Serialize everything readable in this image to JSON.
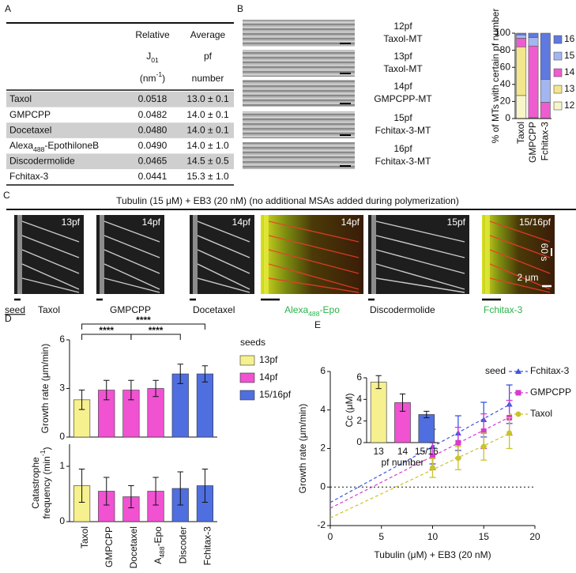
{
  "panel_labels": [
    "A",
    "B",
    "C",
    "D",
    "E"
  ],
  "table": {
    "header": {
      "col1": [
        "Relative",
        [
          "J",
          "01"
        ],
        [
          "(nm",
          "-1",
          ")"
        ]
      ],
      "col2": [
        "Average",
        "pf",
        "number"
      ]
    },
    "rows": [
      [
        "Taxol",
        "0.0518",
        "13.0 ± 0.1"
      ],
      [
        "GMPCPP",
        "0.0482",
        "14.0 ± 0.1"
      ],
      [
        "Docetaxel",
        "0.0480",
        "14.0 ± 0.1"
      ],
      [
        [
          "Alexa",
          "488",
          "-EpothiloneB"
        ],
        "0.0490",
        "14.0 ± 1.0"
      ],
      [
        "Discodermolide",
        "0.0465",
        "14.5 ± 0.5"
      ],
      [
        "Fchitax-3",
        "0.0441",
        "15.3 ± 1.0"
      ]
    ]
  },
  "mt_images": [
    [
      "12pf",
      "Taxol-MT"
    ],
    [
      "13pf",
      "Taxol-MT"
    ],
    [
      "14pf",
      "GMPCPP-MT"
    ],
    [
      "15pf",
      "Fchitax-3-MT"
    ],
    [
      "16pf",
      "Fchitax-3-MT"
    ]
  ],
  "kymographs": {
    "title": "Tubulin (15 μM) + EB3 (20 nM) (no additional MSAs added during polymerization)",
    "seed_label": "seed",
    "time_scale": "60 s",
    "length_scale": "2 μm",
    "panels": [
      {
        "pf": "13pf",
        "name": "Taxol"
      },
      {
        "pf": "14pf",
        "name": "GMPCPP"
      },
      {
        "pf": "14pf",
        "name": "Docetaxel"
      },
      {
        "pf": "14pf",
        "name": [
          "Alexa",
          "488",
          "-Epo"
        ]
      },
      {
        "pf": "15pf",
        "name": "Discodermolide"
      },
      {
        "pf": "15/16pf",
        "name": "Fchitax-3"
      }
    ]
  },
  "chart_data": [
    {
      "type": "stacked_bar",
      "ylabel": "% of MTs with certain pf number",
      "categories": [
        "Taxol",
        "GMPCPP",
        "Fchitax-3"
      ],
      "ylim": [
        0,
        100
      ],
      "yticks": [
        0,
        20,
        40,
        60,
        80,
        100
      ],
      "series": [
        {
          "name": "12",
          "color": "#f8f6c8",
          "values": [
            27,
            0,
            0
          ]
        },
        {
          "name": "13",
          "color": "#f3e68c",
          "values": [
            57,
            1,
            0
          ]
        },
        {
          "name": "14",
          "color": "#ee5ccf",
          "values": [
            10,
            84,
            19
          ]
        },
        {
          "name": "15",
          "color": "#a3b6f0",
          "values": [
            4,
            10,
            27
          ]
        },
        {
          "name": "16",
          "color": "#5f79e0",
          "values": [
            2,
            5,
            54
          ]
        }
      ]
    },
    {
      "type": "bar_error",
      "ylabel": "Growth rate (μm/min)",
      "values": [
        2.3,
        2.9,
        2.9,
        3.0,
        3.9,
        3.9
      ],
      "errors": [
        0.6,
        0.6,
        0.6,
        0.5,
        0.6,
        0.5
      ],
      "colors": [
        "#f7f08e",
        "#f052d2",
        "#f052d2",
        "#f052d2",
        "#4f6fe0",
        "#4f6fe0"
      ],
      "ylim": [
        0,
        6
      ],
      "yticks": [
        0,
        3,
        6
      ],
      "significance": [
        {
          "label": "****",
          "from": 0,
          "to": 5
        },
        {
          "label": "****",
          "from": 0,
          "to": 2
        },
        {
          "label": "****",
          "from": 2,
          "to": 4
        }
      ],
      "legend": {
        "title": "seeds",
        "entries": [
          {
            "name": "13pf",
            "color": "#f7f08e"
          },
          {
            "name": "14pf",
            "color": "#f052d2"
          },
          {
            "name": "15/16pf",
            "color": "#4f6fe0"
          }
        ]
      }
    },
    {
      "type": "bar_error",
      "ylabel": [
        "Catastrophe",
        [
          "frequency (min",
          "-1",
          ")"
        ]
      ],
      "categories": [
        "Taxol",
        "GMPCPP",
        "Docetaxel",
        [
          "A",
          "488",
          "-Epo"
        ],
        "Discoder",
        "Fchitax-3"
      ],
      "values": [
        0.65,
        0.55,
        0.45,
        0.55,
        0.6,
        0.65
      ],
      "errors": [
        0.3,
        0.25,
        0.2,
        0.25,
        0.3,
        0.3
      ],
      "colors": [
        "#f7f08e",
        "#f052d2",
        "#f052d2",
        "#f052d2",
        "#4f6fe0",
        "#4f6fe0"
      ],
      "ylim": [
        0,
        1.4
      ],
      "yticks": [
        0,
        1
      ]
    },
    {
      "type": "line",
      "xlabel": "Tubulin (μM) + EB3 (20 nM)",
      "ylabel": "Growth rate (μm/min)",
      "xlim": [
        0,
        20
      ],
      "xticks": [
        0,
        5,
        10,
        15,
        20
      ],
      "ylim": [
        -2,
        6
      ],
      "yticks": [
        -2,
        0,
        2,
        4,
        6
      ],
      "zero_line": true,
      "legend_title": "seed",
      "x": [
        10,
        12.5,
        15,
        17.5
      ],
      "series": [
        {
          "name": "Fchitax-3",
          "color": "#3b55e0",
          "marker": "triangle",
          "values": [
            2.1,
            2.8,
            3.5,
            4.3
          ],
          "errors": [
            0.9,
            0.9,
            0.9,
            1.0
          ],
          "fit": {
            "intercept": -0.8,
            "slope": 0.29
          }
        },
        {
          "name": "GMPCPP",
          "color": "#d63ad0",
          "marker": "square",
          "values": [
            1.6,
            2.3,
            2.9,
            3.6
          ],
          "errors": [
            0.7,
            0.8,
            0.9,
            0.9
          ],
          "fit": {
            "intercept": -1.1,
            "slope": 0.27
          }
        },
        {
          "name": "Taxol",
          "color": "#c9c42a",
          "marker": "circle",
          "values": [
            1.0,
            1.5,
            2.1,
            2.8
          ],
          "errors": [
            0.5,
            0.6,
            0.7,
            0.8
          ],
          "fit": {
            "intercept": -1.6,
            "slope": 0.25
          }
        }
      ]
    },
    {
      "type": "bar_error",
      "ylabel": "Cc (μM)",
      "xlabel": "pf number",
      "categories": [
        "13",
        "14",
        "15/16"
      ],
      "values": [
        5.6,
        3.7,
        2.6
      ],
      "errors": [
        0.6,
        0.8,
        0.3
      ],
      "colors": [
        "#f7f08e",
        "#f052d2",
        "#4f6fe0"
      ],
      "ylim": [
        0,
        6
      ],
      "yticks": [
        0,
        2,
        4,
        6
      ]
    }
  ]
}
